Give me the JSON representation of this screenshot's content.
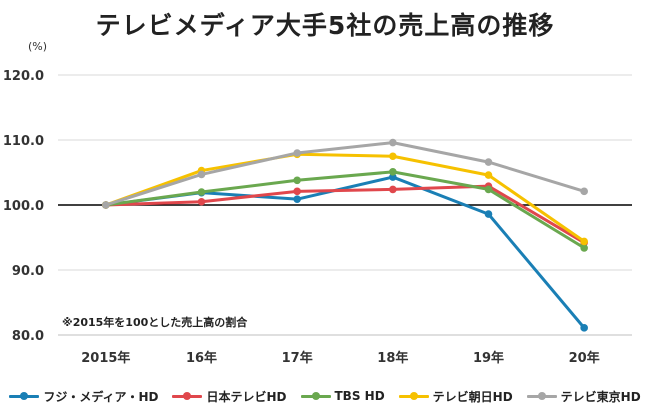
{
  "chart_data": {
    "type": "line",
    "title": "テレビメディア大手5社の売上高の推移",
    "unit_label": "(%)",
    "annotation": "※2015年を100とした売上高の割合",
    "categories": [
      "2015年",
      "16年",
      "17年",
      "18年",
      "19年",
      "20年"
    ],
    "yticks": [
      "120.0",
      "110.0",
      "100.0",
      "90.0",
      "80.0"
    ],
    "ylim": [
      80,
      120
    ],
    "reference_line": 100,
    "grid": true,
    "legend_position": "bottom",
    "series": [
      {
        "name": "フジ・メディア・HD",
        "color": "#1a7fb5",
        "values": [
          100.0,
          101.9,
          100.9,
          104.3,
          98.6,
          81.1
        ]
      },
      {
        "name": "日本テレビHD",
        "color": "#e0474c",
        "values": [
          100.0,
          100.5,
          102.1,
          102.4,
          102.9,
          94.2
        ]
      },
      {
        "name": "TBS HD",
        "color": "#6aa84f",
        "values": [
          100.0,
          102.0,
          103.8,
          105.1,
          102.4,
          93.4
        ]
      },
      {
        "name": "テレビ朝日HD",
        "color": "#f6c100",
        "values": [
          100.0,
          105.3,
          107.8,
          107.5,
          104.6,
          94.4
        ]
      },
      {
        "name": "テレビ東京HD",
        "color": "#a6a6a6",
        "values": [
          100.0,
          104.7,
          108.0,
          109.6,
          106.6,
          102.1
        ]
      }
    ]
  }
}
